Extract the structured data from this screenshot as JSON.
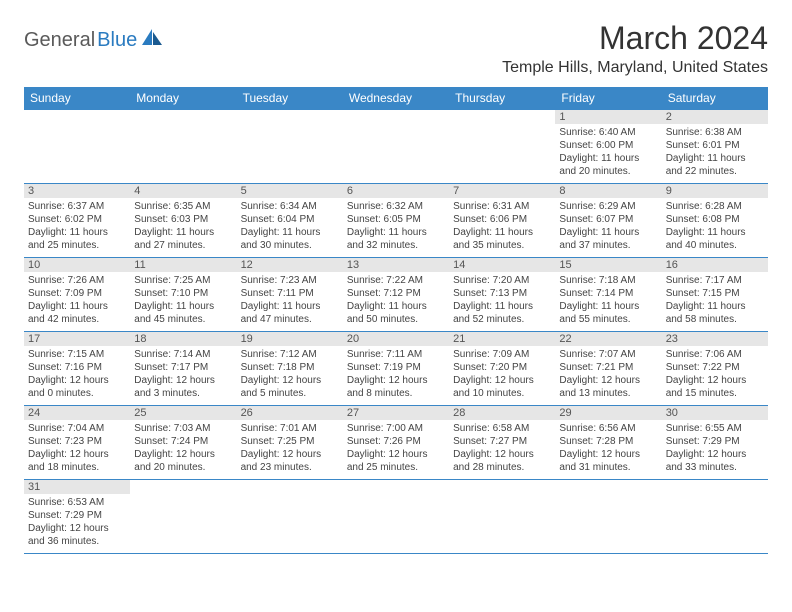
{
  "logo": {
    "part1": "General",
    "part2": "Blue"
  },
  "title": "March 2024",
  "location": "Temple Hills, Maryland, United States",
  "dayHeaders": [
    "Sunday",
    "Monday",
    "Tuesday",
    "Wednesday",
    "Thursday",
    "Friday",
    "Saturday"
  ],
  "colors": {
    "headerBg": "#3a87c7",
    "headerText": "#ffffff",
    "dayNumBg": "#e6e6e6",
    "borderColor": "#3a87c7",
    "logoBlue": "#2a7bc0"
  },
  "weeks": [
    [
      null,
      null,
      null,
      null,
      null,
      {
        "num": "1",
        "sunrise": "Sunrise: 6:40 AM",
        "sunset": "Sunset: 6:00 PM",
        "daylight": "Daylight: 11 hours and 20 minutes."
      },
      {
        "num": "2",
        "sunrise": "Sunrise: 6:38 AM",
        "sunset": "Sunset: 6:01 PM",
        "daylight": "Daylight: 11 hours and 22 minutes."
      }
    ],
    [
      {
        "num": "3",
        "sunrise": "Sunrise: 6:37 AM",
        "sunset": "Sunset: 6:02 PM",
        "daylight": "Daylight: 11 hours and 25 minutes."
      },
      {
        "num": "4",
        "sunrise": "Sunrise: 6:35 AM",
        "sunset": "Sunset: 6:03 PM",
        "daylight": "Daylight: 11 hours and 27 minutes."
      },
      {
        "num": "5",
        "sunrise": "Sunrise: 6:34 AM",
        "sunset": "Sunset: 6:04 PM",
        "daylight": "Daylight: 11 hours and 30 minutes."
      },
      {
        "num": "6",
        "sunrise": "Sunrise: 6:32 AM",
        "sunset": "Sunset: 6:05 PM",
        "daylight": "Daylight: 11 hours and 32 minutes."
      },
      {
        "num": "7",
        "sunrise": "Sunrise: 6:31 AM",
        "sunset": "Sunset: 6:06 PM",
        "daylight": "Daylight: 11 hours and 35 minutes."
      },
      {
        "num": "8",
        "sunrise": "Sunrise: 6:29 AM",
        "sunset": "Sunset: 6:07 PM",
        "daylight": "Daylight: 11 hours and 37 minutes."
      },
      {
        "num": "9",
        "sunrise": "Sunrise: 6:28 AM",
        "sunset": "Sunset: 6:08 PM",
        "daylight": "Daylight: 11 hours and 40 minutes."
      }
    ],
    [
      {
        "num": "10",
        "sunrise": "Sunrise: 7:26 AM",
        "sunset": "Sunset: 7:09 PM",
        "daylight": "Daylight: 11 hours and 42 minutes."
      },
      {
        "num": "11",
        "sunrise": "Sunrise: 7:25 AM",
        "sunset": "Sunset: 7:10 PM",
        "daylight": "Daylight: 11 hours and 45 minutes."
      },
      {
        "num": "12",
        "sunrise": "Sunrise: 7:23 AM",
        "sunset": "Sunset: 7:11 PM",
        "daylight": "Daylight: 11 hours and 47 minutes."
      },
      {
        "num": "13",
        "sunrise": "Sunrise: 7:22 AM",
        "sunset": "Sunset: 7:12 PM",
        "daylight": "Daylight: 11 hours and 50 minutes."
      },
      {
        "num": "14",
        "sunrise": "Sunrise: 7:20 AM",
        "sunset": "Sunset: 7:13 PM",
        "daylight": "Daylight: 11 hours and 52 minutes."
      },
      {
        "num": "15",
        "sunrise": "Sunrise: 7:18 AM",
        "sunset": "Sunset: 7:14 PM",
        "daylight": "Daylight: 11 hours and 55 minutes."
      },
      {
        "num": "16",
        "sunrise": "Sunrise: 7:17 AM",
        "sunset": "Sunset: 7:15 PM",
        "daylight": "Daylight: 11 hours and 58 minutes."
      }
    ],
    [
      {
        "num": "17",
        "sunrise": "Sunrise: 7:15 AM",
        "sunset": "Sunset: 7:16 PM",
        "daylight": "Daylight: 12 hours and 0 minutes."
      },
      {
        "num": "18",
        "sunrise": "Sunrise: 7:14 AM",
        "sunset": "Sunset: 7:17 PM",
        "daylight": "Daylight: 12 hours and 3 minutes."
      },
      {
        "num": "19",
        "sunrise": "Sunrise: 7:12 AM",
        "sunset": "Sunset: 7:18 PM",
        "daylight": "Daylight: 12 hours and 5 minutes."
      },
      {
        "num": "20",
        "sunrise": "Sunrise: 7:11 AM",
        "sunset": "Sunset: 7:19 PM",
        "daylight": "Daylight: 12 hours and 8 minutes."
      },
      {
        "num": "21",
        "sunrise": "Sunrise: 7:09 AM",
        "sunset": "Sunset: 7:20 PM",
        "daylight": "Daylight: 12 hours and 10 minutes."
      },
      {
        "num": "22",
        "sunrise": "Sunrise: 7:07 AM",
        "sunset": "Sunset: 7:21 PM",
        "daylight": "Daylight: 12 hours and 13 minutes."
      },
      {
        "num": "23",
        "sunrise": "Sunrise: 7:06 AM",
        "sunset": "Sunset: 7:22 PM",
        "daylight": "Daylight: 12 hours and 15 minutes."
      }
    ],
    [
      {
        "num": "24",
        "sunrise": "Sunrise: 7:04 AM",
        "sunset": "Sunset: 7:23 PM",
        "daylight": "Daylight: 12 hours and 18 minutes."
      },
      {
        "num": "25",
        "sunrise": "Sunrise: 7:03 AM",
        "sunset": "Sunset: 7:24 PM",
        "daylight": "Daylight: 12 hours and 20 minutes."
      },
      {
        "num": "26",
        "sunrise": "Sunrise: 7:01 AM",
        "sunset": "Sunset: 7:25 PM",
        "daylight": "Daylight: 12 hours and 23 minutes."
      },
      {
        "num": "27",
        "sunrise": "Sunrise: 7:00 AM",
        "sunset": "Sunset: 7:26 PM",
        "daylight": "Daylight: 12 hours and 25 minutes."
      },
      {
        "num": "28",
        "sunrise": "Sunrise: 6:58 AM",
        "sunset": "Sunset: 7:27 PM",
        "daylight": "Daylight: 12 hours and 28 minutes."
      },
      {
        "num": "29",
        "sunrise": "Sunrise: 6:56 AM",
        "sunset": "Sunset: 7:28 PM",
        "daylight": "Daylight: 12 hours and 31 minutes."
      },
      {
        "num": "30",
        "sunrise": "Sunrise: 6:55 AM",
        "sunset": "Sunset: 7:29 PM",
        "daylight": "Daylight: 12 hours and 33 minutes."
      }
    ],
    [
      {
        "num": "31",
        "sunrise": "Sunrise: 6:53 AM",
        "sunset": "Sunset: 7:29 PM",
        "daylight": "Daylight: 12 hours and 36 minutes."
      },
      null,
      null,
      null,
      null,
      null,
      null
    ]
  ]
}
